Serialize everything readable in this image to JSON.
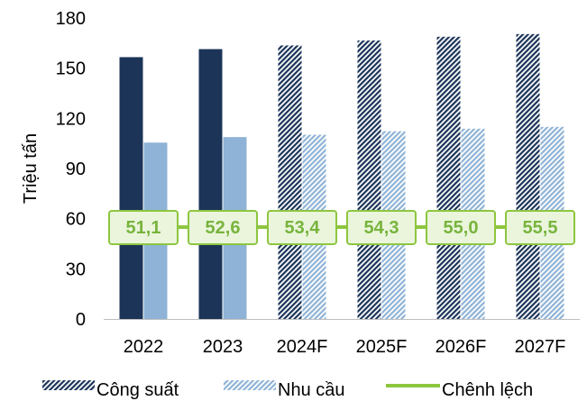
{
  "chart_data": {
    "type": "bar",
    "ylabel": "Triệu tấn",
    "ylim": [
      0,
      180
    ],
    "yticks": [
      0,
      30,
      60,
      90,
      120,
      150,
      180
    ],
    "grid": false,
    "legend_position": "bottom",
    "categories": [
      "2022",
      "2023",
      "2024F",
      "2025F",
      "2026F",
      "2027F"
    ],
    "forecast_from_index": 2,
    "series": [
      {
        "name": "Công suất",
        "kind": "bar",
        "values": [
          156.6,
          161.4,
          163.6,
          166.6,
          168.8,
          170.4
        ],
        "color": "#1b3458",
        "forecast_pattern": "dense-diagonal-hatch"
      },
      {
        "name": "Nhu cầu",
        "kind": "bar",
        "values": [
          105.5,
          108.8,
          110.2,
          112.3,
          113.8,
          114.9
        ],
        "color": "#8fb3d6",
        "forecast_pattern": "light-diagonal-hatch"
      },
      {
        "name": "Chênh lệch",
        "kind": "line",
        "values": [
          51.1,
          52.6,
          53.4,
          54.3,
          55.0,
          55.5
        ],
        "labels": [
          "51,1",
          "52,6",
          "53,4",
          "54,3",
          "55,0",
          "55,5"
        ],
        "color": "#8dc63f",
        "label_fill": "#eaf5dc",
        "label_text_color": "#78b43c",
        "plotted_at_y": 55
      }
    ]
  }
}
